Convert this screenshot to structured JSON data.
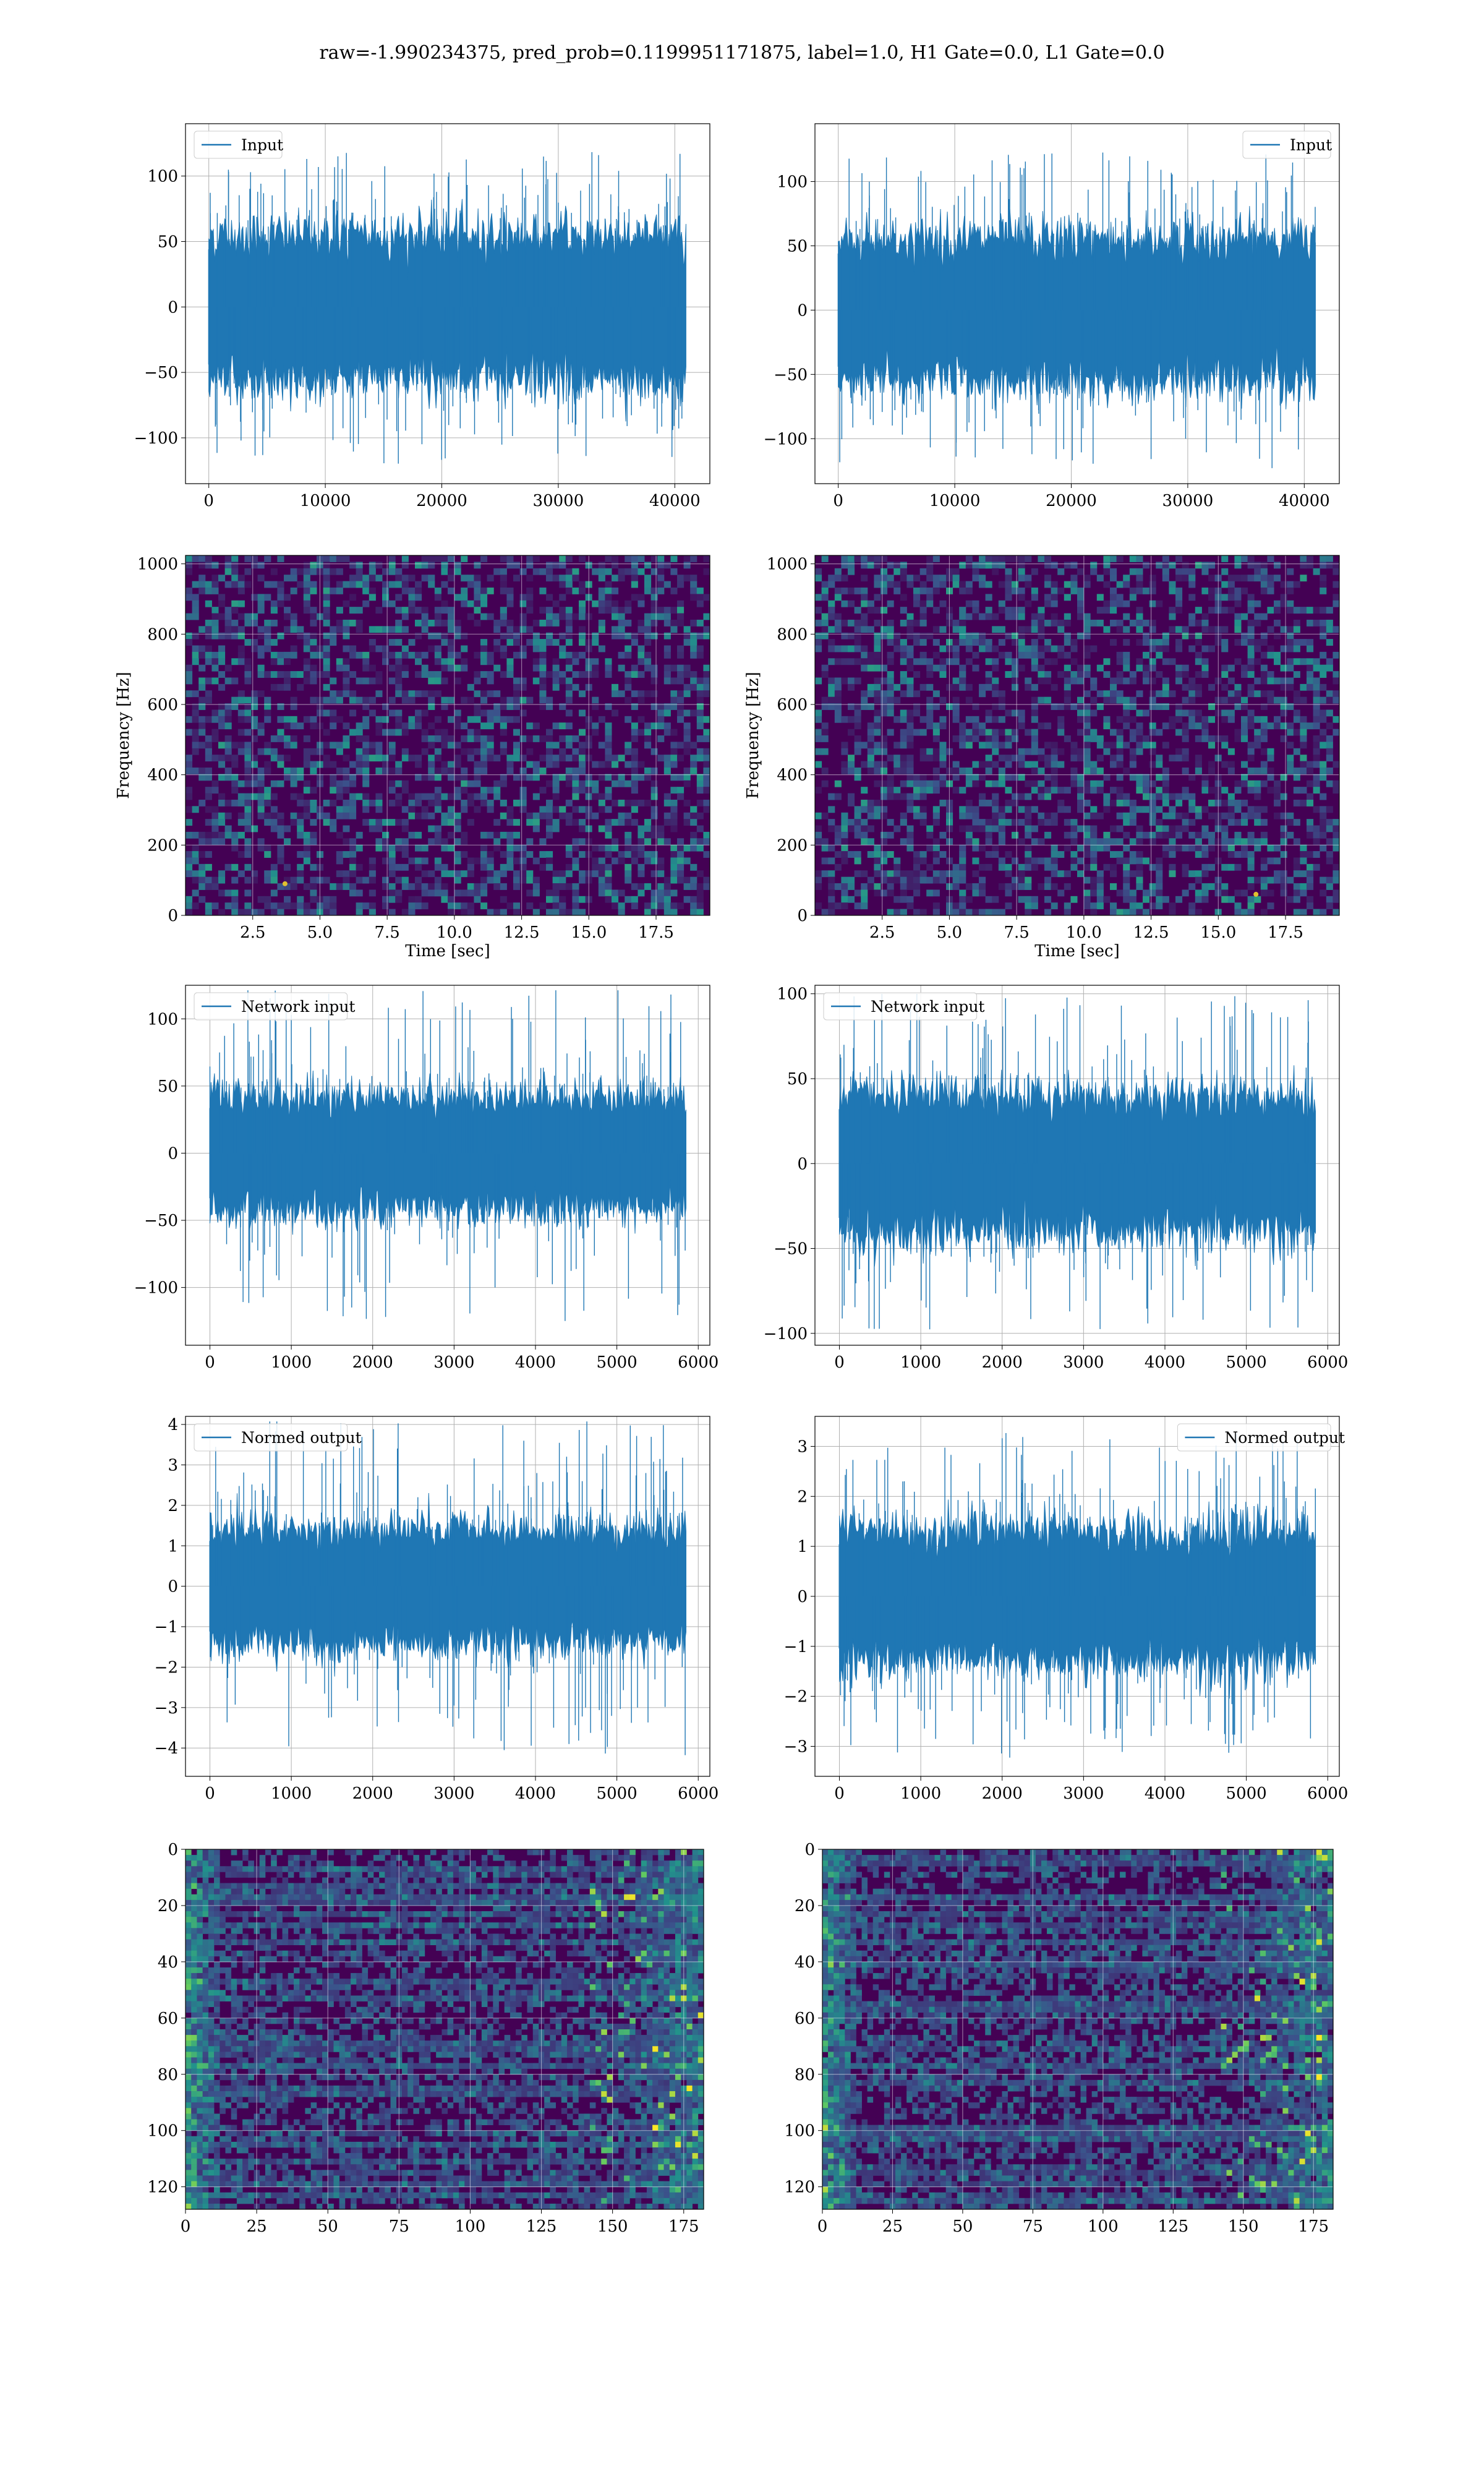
{
  "figure_title": "raw=-1.990234375, pred_prob=0.1199951171875, label=1.0, H1 Gate=0.0, L1 Gate=0.0",
  "colors": {
    "line": "#1f77b4",
    "grid": "#b0b0b0",
    "viridis_dark": "#440154",
    "viridis_mid": "#3b528b",
    "viridis_teal": "#21918c",
    "viridis_green": "#5ec962",
    "viridis_yellow": "#fde725"
  },
  "chart_data": [
    {
      "id": "input-h1",
      "type": "line",
      "series": [
        {
          "name": "Input",
          "values": []
        }
      ],
      "x_range": [
        0,
        40960
      ],
      "ylim": [
        -135,
        140
      ],
      "xticks": [
        0,
        10000,
        20000,
        30000,
        40000
      ],
      "yticks": [
        -100,
        -50,
        0,
        50,
        100
      ],
      "xlabel": "",
      "ylabel": "",
      "legend": "upper left",
      "grid": true,
      "envelope": {
        "core": 55,
        "spike": 120
      }
    },
    {
      "id": "input-l1",
      "type": "line",
      "series": [
        {
          "name": "Input",
          "values": []
        }
      ],
      "x_range": [
        0,
        40960
      ],
      "ylim": [
        -135,
        145
      ],
      "xticks": [
        0,
        10000,
        20000,
        30000,
        40000
      ],
      "yticks": [
        -100,
        -50,
        0,
        50,
        100
      ],
      "xlabel": "",
      "ylabel": "",
      "legend": "upper right",
      "grid": true,
      "envelope": {
        "core": 55,
        "spike": 125
      }
    },
    {
      "id": "spec-h1",
      "type": "heatmap",
      "xlim": [
        0,
        19.5
      ],
      "ylim": [
        0,
        1024
      ],
      "xticks": [
        2.5,
        5.0,
        7.5,
        10.0,
        12.5,
        15.0,
        17.5
      ],
      "yticks": [
        0,
        200,
        400,
        600,
        800,
        1000
      ],
      "xlabel": "Time [sec]",
      "ylabel": "Frequency [Hz]",
      "grid": true,
      "colormap": "viridis",
      "hot_spot": [
        3.7,
        90
      ]
    },
    {
      "id": "spec-l1",
      "type": "heatmap",
      "xlim": [
        0,
        19.5
      ],
      "ylim": [
        0,
        1024
      ],
      "xticks": [
        2.5,
        5.0,
        7.5,
        10.0,
        12.5,
        15.0,
        17.5
      ],
      "yticks": [
        0,
        200,
        400,
        600,
        800,
        1000
      ],
      "xlabel": "Time [sec]",
      "ylabel": "Frequency [Hz]",
      "grid": true,
      "colormap": "viridis",
      "hot_spot": [
        16.4,
        60
      ]
    },
    {
      "id": "net-h1",
      "type": "line",
      "series": [
        {
          "name": "Network input",
          "values": []
        }
      ],
      "x_range": [
        0,
        5850
      ],
      "ylim": [
        -143,
        125
      ],
      "xticks": [
        0,
        1000,
        2000,
        3000,
        4000,
        5000,
        6000
      ],
      "yticks": [
        -100,
        -50,
        0,
        50,
        100
      ],
      "xlabel": "",
      "ylabel": "",
      "legend": "upper left",
      "grid": true,
      "envelope": {
        "core": 42,
        "spike": 125
      }
    },
    {
      "id": "net-l1",
      "type": "line",
      "series": [
        {
          "name": "Network input",
          "values": []
        }
      ],
      "x_range": [
        0,
        5850
      ],
      "ylim": [
        -107,
        105
      ],
      "xticks": [
        0,
        1000,
        2000,
        3000,
        4000,
        5000,
        6000
      ],
      "yticks": [
        -100,
        -50,
        0,
        50,
        100
      ],
      "xlabel": "",
      "ylabel": "",
      "legend": "upper left",
      "grid": true,
      "envelope": {
        "core": 40,
        "spike": 100
      }
    },
    {
      "id": "norm-h1",
      "type": "line",
      "series": [
        {
          "name": "Normed output",
          "values": []
        }
      ],
      "x_range": [
        0,
        5850
      ],
      "ylim": [
        -4.7,
        4.2
      ],
      "xticks": [
        0,
        1000,
        2000,
        3000,
        4000,
        5000,
        6000
      ],
      "yticks": [
        -4,
        -3,
        -2,
        -1,
        0,
        1,
        2,
        3,
        4
      ],
      "xlabel": "",
      "ylabel": "",
      "legend": "upper left",
      "grid": true,
      "envelope": {
        "core": 1.4,
        "spike": 4.2
      }
    },
    {
      "id": "norm-l1",
      "type": "line",
      "series": [
        {
          "name": "Normed output",
          "values": []
        }
      ],
      "x_range": [
        0,
        5850
      ],
      "ylim": [
        -3.6,
        3.6
      ],
      "xticks": [
        0,
        1000,
        2000,
        3000,
        4000,
        5000,
        6000
      ],
      "yticks": [
        -3,
        -2,
        -1,
        0,
        1,
        2,
        3
      ],
      "xlabel": "",
      "ylabel": "",
      "legend": "upper right",
      "grid": true,
      "envelope": {
        "core": 1.3,
        "spike": 3.3
      }
    },
    {
      "id": "img-h1",
      "type": "heatmap",
      "xlim": [
        0,
        182
      ],
      "ylim": [
        0,
        128
      ],
      "y_inverted": true,
      "xticks": [
        0,
        25,
        50,
        75,
        100,
        125,
        150,
        175
      ],
      "yticks": [
        0,
        20,
        40,
        60,
        80,
        100,
        120
      ],
      "xlabel": "",
      "ylabel": "",
      "grid": true,
      "colormap": "viridis"
    },
    {
      "id": "img-l1",
      "type": "heatmap",
      "xlim": [
        0,
        182
      ],
      "ylim": [
        0,
        128
      ],
      "y_inverted": true,
      "xticks": [
        0,
        25,
        50,
        75,
        100,
        125,
        150,
        175
      ],
      "yticks": [
        0,
        20,
        40,
        60,
        80,
        100,
        120
      ],
      "xlabel": "",
      "ylabel": "",
      "grid": true,
      "colormap": "viridis"
    }
  ]
}
